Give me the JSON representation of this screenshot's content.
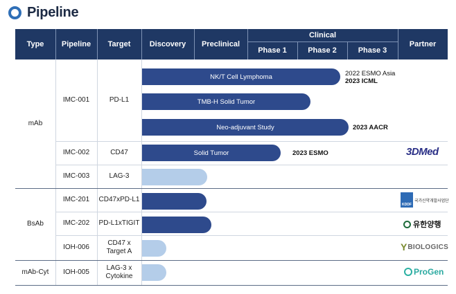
{
  "title": "Pipeline",
  "header": {
    "type": "Type",
    "pipeline": "Pipeline",
    "target": "Target",
    "discovery": "Discovery",
    "preclinical": "Preclinical",
    "clinical": "Clinical",
    "phase1": "Phase 1",
    "phase2": "Phase 2",
    "phase3": "Phase 3",
    "partner": "Partner"
  },
  "types": {
    "mab": "mAb",
    "bsab": "BsAb",
    "mabcyt": "mAb-Cyt"
  },
  "rows": {
    "imc001": {
      "pipeline": "IMC-001",
      "target": "PD-L1",
      "bars": [
        {
          "label": "NK/T Cell Lymphoma",
          "stage": "Phase 3",
          "progress": 0.9
        },
        {
          "label": "TMB-H Solid Tumor",
          "stage": "Phase 2",
          "progress": 0.8
        },
        {
          "label": "Neo-adjuvant Study",
          "stage": "Phase 3",
          "progress": 0.2
        }
      ],
      "notes": [
        {
          "line1": "2022 ESMO Asia",
          "line2": "2023 ICML"
        },
        {
          "line1": "2023 AACR"
        }
      ]
    },
    "imc002": {
      "pipeline": "IMC-002",
      "target": "CD47",
      "bar": {
        "label": "Solid Tumor",
        "stage": "Phase 1",
        "progress": 0.65
      },
      "note": "2023 ESMO",
      "partner": "3DMed"
    },
    "imc003": {
      "pipeline": "IMC-003",
      "target": "LAG-3"
    },
    "imc201": {
      "pipeline": "IMC-201",
      "target": "CD47xPD-L1",
      "partner_mark": "KDDF",
      "partner_text": "국가신약개발사업단"
    },
    "imc202": {
      "pipeline": "IMC-202",
      "target": "PD-L1xTIGIT",
      "partner": "유한양행"
    },
    "ioh006": {
      "pipeline": "IOH-006",
      "target_line1": "CD47 x",
      "target_line2": "Target  A",
      "partner": "BIOLOGICS"
    },
    "ioh005": {
      "pipeline": "IOH-005",
      "target_line1": "LAG-3 x",
      "target_line2": "Cytokine",
      "partner": "ProGen"
    }
  },
  "colors": {
    "header": "#1f3864",
    "bar_dark": "#2e4a8c",
    "bar_light": "#b4cde9",
    "accent": "#2f6fb7"
  }
}
